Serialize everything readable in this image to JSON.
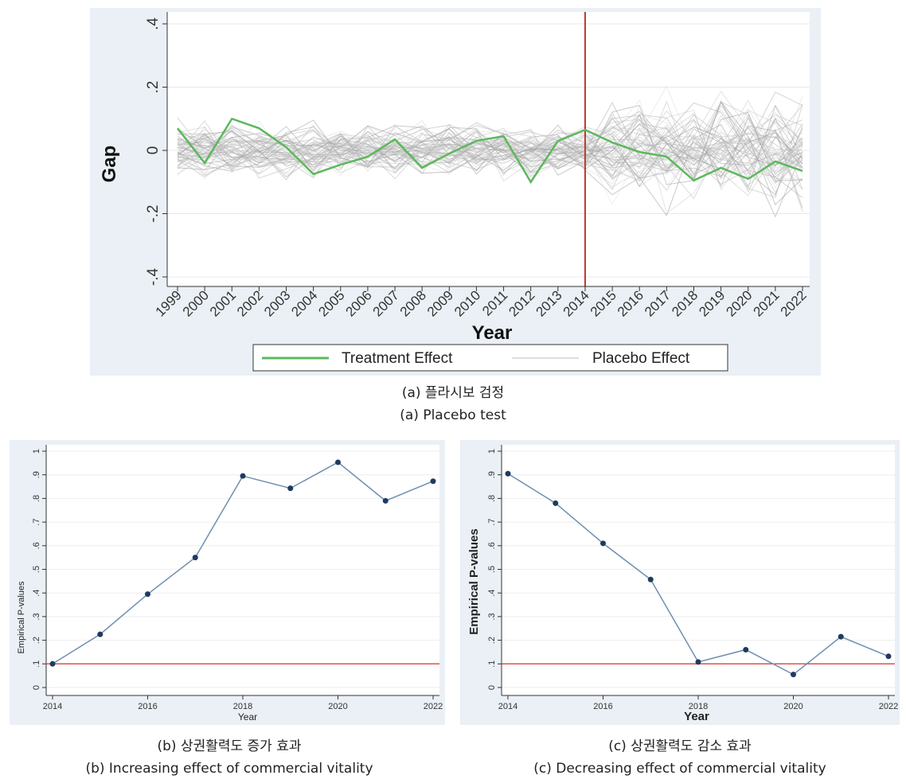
{
  "figure_a": {
    "caption_ko": "(a) 플라시보 검정",
    "caption_en": "(a) Placebo test"
  },
  "figure_b": {
    "caption_ko": "(b) 상권활력도 증가 효과",
    "caption_en": "(b) Increasing effect of commercial vitality"
  },
  "figure_c": {
    "caption_ko": "(c) 상권활력도 감소 효과",
    "caption_en": "(c) Decreasing effect of commercial vitality"
  },
  "chart_data": [
    {
      "id": "placebo",
      "type": "line",
      "title": "",
      "xlabel": "Year",
      "ylabel": "Gap",
      "categories": [
        "1999",
        "2000",
        "2001",
        "2002",
        "2003",
        "2004",
        "2005",
        "2006",
        "2007",
        "2008",
        "2009",
        "2010",
        "2011",
        "2012",
        "2013",
        "2014",
        "2015",
        "2016",
        "2017",
        "2018",
        "2019",
        "2020",
        "2021",
        "2022"
      ],
      "ylim": [
        -0.4,
        0.4
      ],
      "yticks": [
        -0.4,
        -0.2,
        0,
        0.2,
        0.4
      ],
      "ytick_labels": [
        "-.4",
        "-.2",
        "0",
        ".2",
        ".4"
      ],
      "vline_year": "2014",
      "vline_color": "#c0392b",
      "treatment_color": "#5cb85c",
      "placebo_color": "#9e9e9e",
      "legend": [
        "Treatment Effect",
        "Placebo Effect"
      ],
      "legend_position": "bottom",
      "series": [
        {
          "name": "Treatment Effect",
          "values": [
            0.07,
            -0.04,
            0.1,
            0.07,
            0.01,
            -0.075,
            -0.045,
            -0.02,
            0.035,
            -0.055,
            -0.01,
            0.03,
            0.045,
            -0.1,
            0.03,
            0.065,
            0.025,
            -0.005,
            -0.02,
            -0.095,
            -0.055,
            -0.09,
            -0.035,
            -0.065
          ]
        }
      ],
      "placebo_series_count": 60
    },
    {
      "id": "increasing",
      "type": "line",
      "xlabel": "Year",
      "ylabel": "Empirical P-values",
      "x": [
        2014,
        2015,
        2016,
        2017,
        2018,
        2019,
        2020,
        2021,
        2022
      ],
      "values": [
        0.1,
        0.225,
        0.395,
        0.55,
        0.895,
        0.843,
        0.953,
        0.79,
        0.873
      ],
      "xticks": [
        "2014",
        "2016",
        "2018",
        "2020",
        "2022"
      ],
      "ylim": [
        0,
        1
      ],
      "ytick_labels": [
        "0",
        ".1",
        ".2",
        ".3",
        ".4",
        ".5",
        ".6",
        ".7",
        ".8",
        ".9",
        "1"
      ],
      "hline": 0.1,
      "line_color": "#6f8fb0",
      "marker_color": "#1f3a5f",
      "hline_color": "#d9534f"
    },
    {
      "id": "decreasing",
      "type": "line",
      "xlabel": "Year",
      "ylabel": "Empirical P-values",
      "x": [
        2014,
        2015,
        2016,
        2017,
        2018,
        2019,
        2020,
        2021,
        2022
      ],
      "values": [
        0.905,
        0.78,
        0.61,
        0.457,
        0.108,
        0.16,
        0.055,
        0.215,
        0.132
      ],
      "xticks": [
        "2014",
        "2016",
        "2018",
        "2020",
        "2022"
      ],
      "ylim": [
        0,
        1
      ],
      "ytick_labels": [
        "0",
        ".1",
        ".2",
        ".3",
        ".4",
        ".5",
        ".6",
        ".7",
        ".8",
        ".9",
        "1"
      ],
      "hline": 0.1,
      "line_color": "#6f8fb0",
      "marker_color": "#1f3a5f",
      "hline_color": "#d9534f"
    }
  ]
}
